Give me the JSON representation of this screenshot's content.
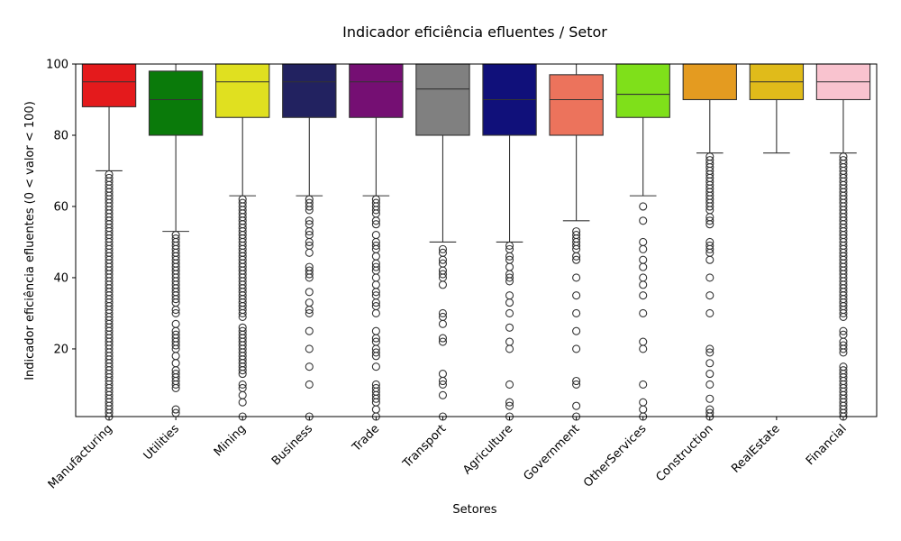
{
  "chart_data": {
    "type": "box",
    "title": "Indicador eficiência efluentes / Setor",
    "xlabel": "Setores",
    "ylabel": "Indicador eficiência efluentes (0 < valor < 100)",
    "ylim": [
      1,
      100
    ],
    "yticks": [
      20,
      40,
      60,
      80,
      100
    ],
    "grid": false,
    "series": [
      {
        "category": "Manufacturing",
        "color": "#e41a1c",
        "whisker_low": 70,
        "q1": 88,
        "median": 95,
        "q3": 100,
        "whisker_high": 100,
        "outliers": [
          69,
          68,
          67,
          66,
          65,
          64,
          63,
          62,
          61,
          60,
          59,
          58,
          57,
          56,
          55,
          54,
          53,
          52,
          51,
          50,
          49,
          48,
          47,
          46,
          45,
          44,
          43,
          42,
          41,
          40,
          39,
          38,
          37,
          36,
          35,
          34,
          33,
          32,
          31,
          30,
          29,
          28,
          27,
          26,
          25,
          24,
          23,
          22,
          21,
          20,
          19,
          18,
          17,
          16,
          15,
          14,
          13,
          12,
          11,
          10,
          9,
          8,
          7,
          6,
          5,
          4,
          3,
          2,
          1
        ]
      },
      {
        "category": "Utilities",
        "color": "#0a7a0a",
        "whisker_low": 53,
        "q1": 80,
        "median": 90,
        "q3": 98,
        "whisker_high": 100,
        "outliers": [
          52,
          51,
          50,
          49,
          48,
          47,
          46,
          45,
          44,
          43,
          42,
          41,
          40,
          39,
          38,
          37,
          36,
          35,
          34,
          33,
          31,
          30,
          27,
          25,
          24,
          23,
          22,
          21,
          20,
          18,
          16,
          14,
          13,
          12,
          11,
          10,
          9,
          3,
          2
        ]
      },
      {
        "category": "Mining",
        "color": "#e0e020",
        "whisker_low": 63,
        "q1": 85,
        "median": 95,
        "q3": 100,
        "whisker_high": 100,
        "outliers": [
          62,
          61,
          60,
          59,
          58,
          57,
          56,
          55,
          54,
          53,
          52,
          51,
          50,
          49,
          48,
          47,
          46,
          45,
          44,
          43,
          42,
          41,
          40,
          39,
          38,
          37,
          36,
          35,
          34,
          33,
          32,
          31,
          30,
          29,
          26,
          25,
          24,
          23,
          22,
          21,
          20,
          19,
          18,
          17,
          16,
          15,
          14,
          13,
          10,
          9,
          7,
          5,
          1
        ]
      },
      {
        "category": "Business",
        "color": "#222260",
        "whisker_low": 63,
        "q1": 85,
        "median": 95,
        "q3": 100,
        "whisker_high": 100,
        "outliers": [
          62,
          61,
          60,
          59,
          56,
          55,
          53,
          52,
          50,
          49,
          47,
          43,
          42,
          41,
          40,
          36,
          33,
          31,
          30,
          25,
          20,
          15,
          10,
          1
        ]
      },
      {
        "category": "Trade",
        "color": "#750f73",
        "whisker_low": 63,
        "q1": 85,
        "median": 95,
        "q3": 100,
        "whisker_high": 100,
        "outliers": [
          62,
          61,
          60,
          59,
          58,
          56,
          55,
          52,
          50,
          49,
          48,
          46,
          44,
          43,
          42,
          40,
          38,
          36,
          35,
          33,
          32,
          30,
          25,
          23,
          22,
          20,
          19,
          18,
          15,
          10,
          9,
          8,
          7,
          6,
          5,
          3,
          1
        ]
      },
      {
        "category": "Transport",
        "color": "#808080",
        "whisker_low": 50,
        "q1": 80,
        "median": 93,
        "q3": 100,
        "whisker_high": 100,
        "outliers": [
          48,
          47,
          45,
          44,
          42,
          41,
          40,
          38,
          30,
          29,
          27,
          23,
          22,
          13,
          11,
          10,
          7,
          1
        ]
      },
      {
        "category": "Agriculture",
        "color": "#10107a",
        "whisker_low": 50,
        "q1": 80,
        "median": 90,
        "q3": 100,
        "whisker_high": 100,
        "outliers": [
          49,
          48,
          46,
          45,
          43,
          41,
          40,
          39,
          35,
          33,
          30,
          26,
          22,
          20,
          10,
          5,
          4,
          1
        ]
      },
      {
        "category": "Government",
        "color": "#ec735c",
        "whisker_low": 56,
        "q1": 80,
        "median": 90,
        "q3": 97,
        "whisker_high": 100,
        "outliers": [
          53,
          52,
          51,
          50,
          49,
          48,
          46,
          45,
          40,
          35,
          30,
          25,
          20,
          11,
          10,
          4,
          1
        ]
      },
      {
        "category": "OtherServices",
        "color": "#7fe01a",
        "whisker_low": 63,
        "q1": 85,
        "median": 91.5,
        "q3": 100,
        "whisker_high": 100,
        "outliers": [
          60,
          56,
          50,
          48,
          45,
          43,
          40,
          38,
          35,
          30,
          22,
          20,
          10,
          5,
          3,
          1
        ]
      },
      {
        "category": "Construction",
        "color": "#e49b20",
        "whisker_low": 75,
        "q1": 90,
        "median": 100,
        "q3": 100,
        "whisker_high": 100,
        "outliers": [
          74,
          73,
          72,
          71,
          70,
          69,
          68,
          67,
          66,
          65,
          64,
          63,
          62,
          61,
          60,
          59,
          57,
          56,
          55,
          50,
          49,
          48,
          47,
          45,
          40,
          35,
          30,
          20,
          19,
          16,
          13,
          10,
          6,
          3,
          2,
          1
        ]
      },
      {
        "category": "RealEstate",
        "color": "#e0bb1a",
        "whisker_low": 75,
        "q1": 90,
        "median": 95,
        "q3": 100,
        "whisker_high": 100,
        "outliers": []
      },
      {
        "category": "Financial",
        "color": "#f9c3cf",
        "whisker_low": 75,
        "q1": 90,
        "median": 95,
        "q3": 100,
        "whisker_high": 100,
        "outliers": [
          74,
          73,
          72,
          71,
          70,
          69,
          68,
          67,
          66,
          65,
          64,
          63,
          62,
          61,
          60,
          59,
          58,
          57,
          56,
          55,
          54,
          53,
          52,
          51,
          50,
          49,
          48,
          47,
          46,
          45,
          44,
          43,
          42,
          41,
          40,
          39,
          38,
          37,
          36,
          35,
          34,
          33,
          32,
          31,
          30,
          29,
          25,
          24,
          22,
          21,
          20,
          19,
          15,
          14,
          13,
          12,
          11,
          10,
          9,
          8,
          7,
          6,
          5,
          4,
          3,
          2,
          1
        ]
      }
    ]
  }
}
